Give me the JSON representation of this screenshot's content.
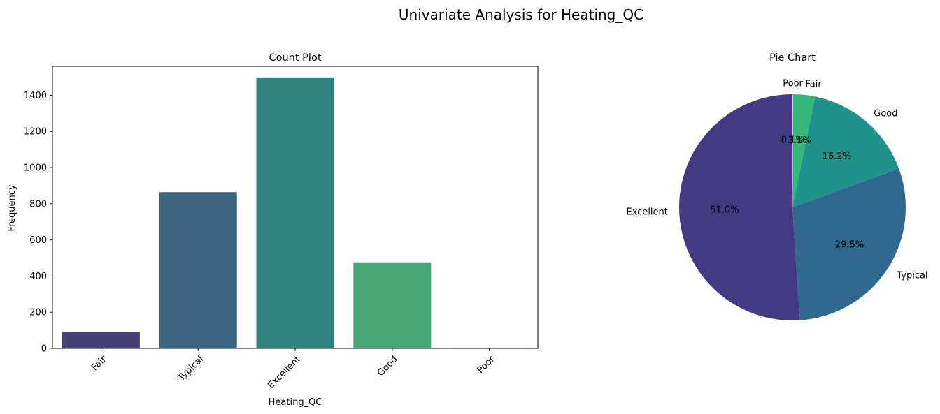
{
  "figure": {
    "title": "Univariate Analysis for Heating_QC"
  },
  "chart_data": [
    {
      "type": "bar",
      "title": "Count Plot",
      "xlabel": "Heating_QC",
      "ylabel": "Frequency",
      "categories": [
        "Fair",
        "Typical",
        "Excellent",
        "Good",
        "Poor"
      ],
      "values": [
        92,
        864,
        1495,
        476,
        3
      ],
      "colors": [
        "#463f76",
        "#3d6580",
        "#2f837e",
        "#46a775",
        "#a3d968"
      ],
      "ylim": [
        0,
        1560
      ],
      "yticks": [
        0,
        200,
        400,
        600,
        800,
        1000,
        1200,
        1400
      ],
      "ytick_labels": [
        "0",
        "200",
        "400",
        "600",
        "800",
        "1000",
        "1200",
        "1400"
      ],
      "xtick_rotation": 45,
      "grid": false
    },
    {
      "type": "pie",
      "title": "Pie Chart",
      "labels": [
        "Excellent",
        "Typical",
        "Good",
        "Fair",
        "Poor"
      ],
      "values": [
        51.0,
        29.5,
        16.2,
        3.1,
        0.1
      ],
      "pct_labels": [
        "51.0%",
        "29.5%",
        "16.2%",
        "3.1%",
        "0.1%"
      ],
      "colors": [
        "#443983",
        "#31688e",
        "#21918c",
        "#35b779",
        "#fde725"
      ],
      "startangle": 90,
      "direction": "counterclockwise"
    }
  ]
}
